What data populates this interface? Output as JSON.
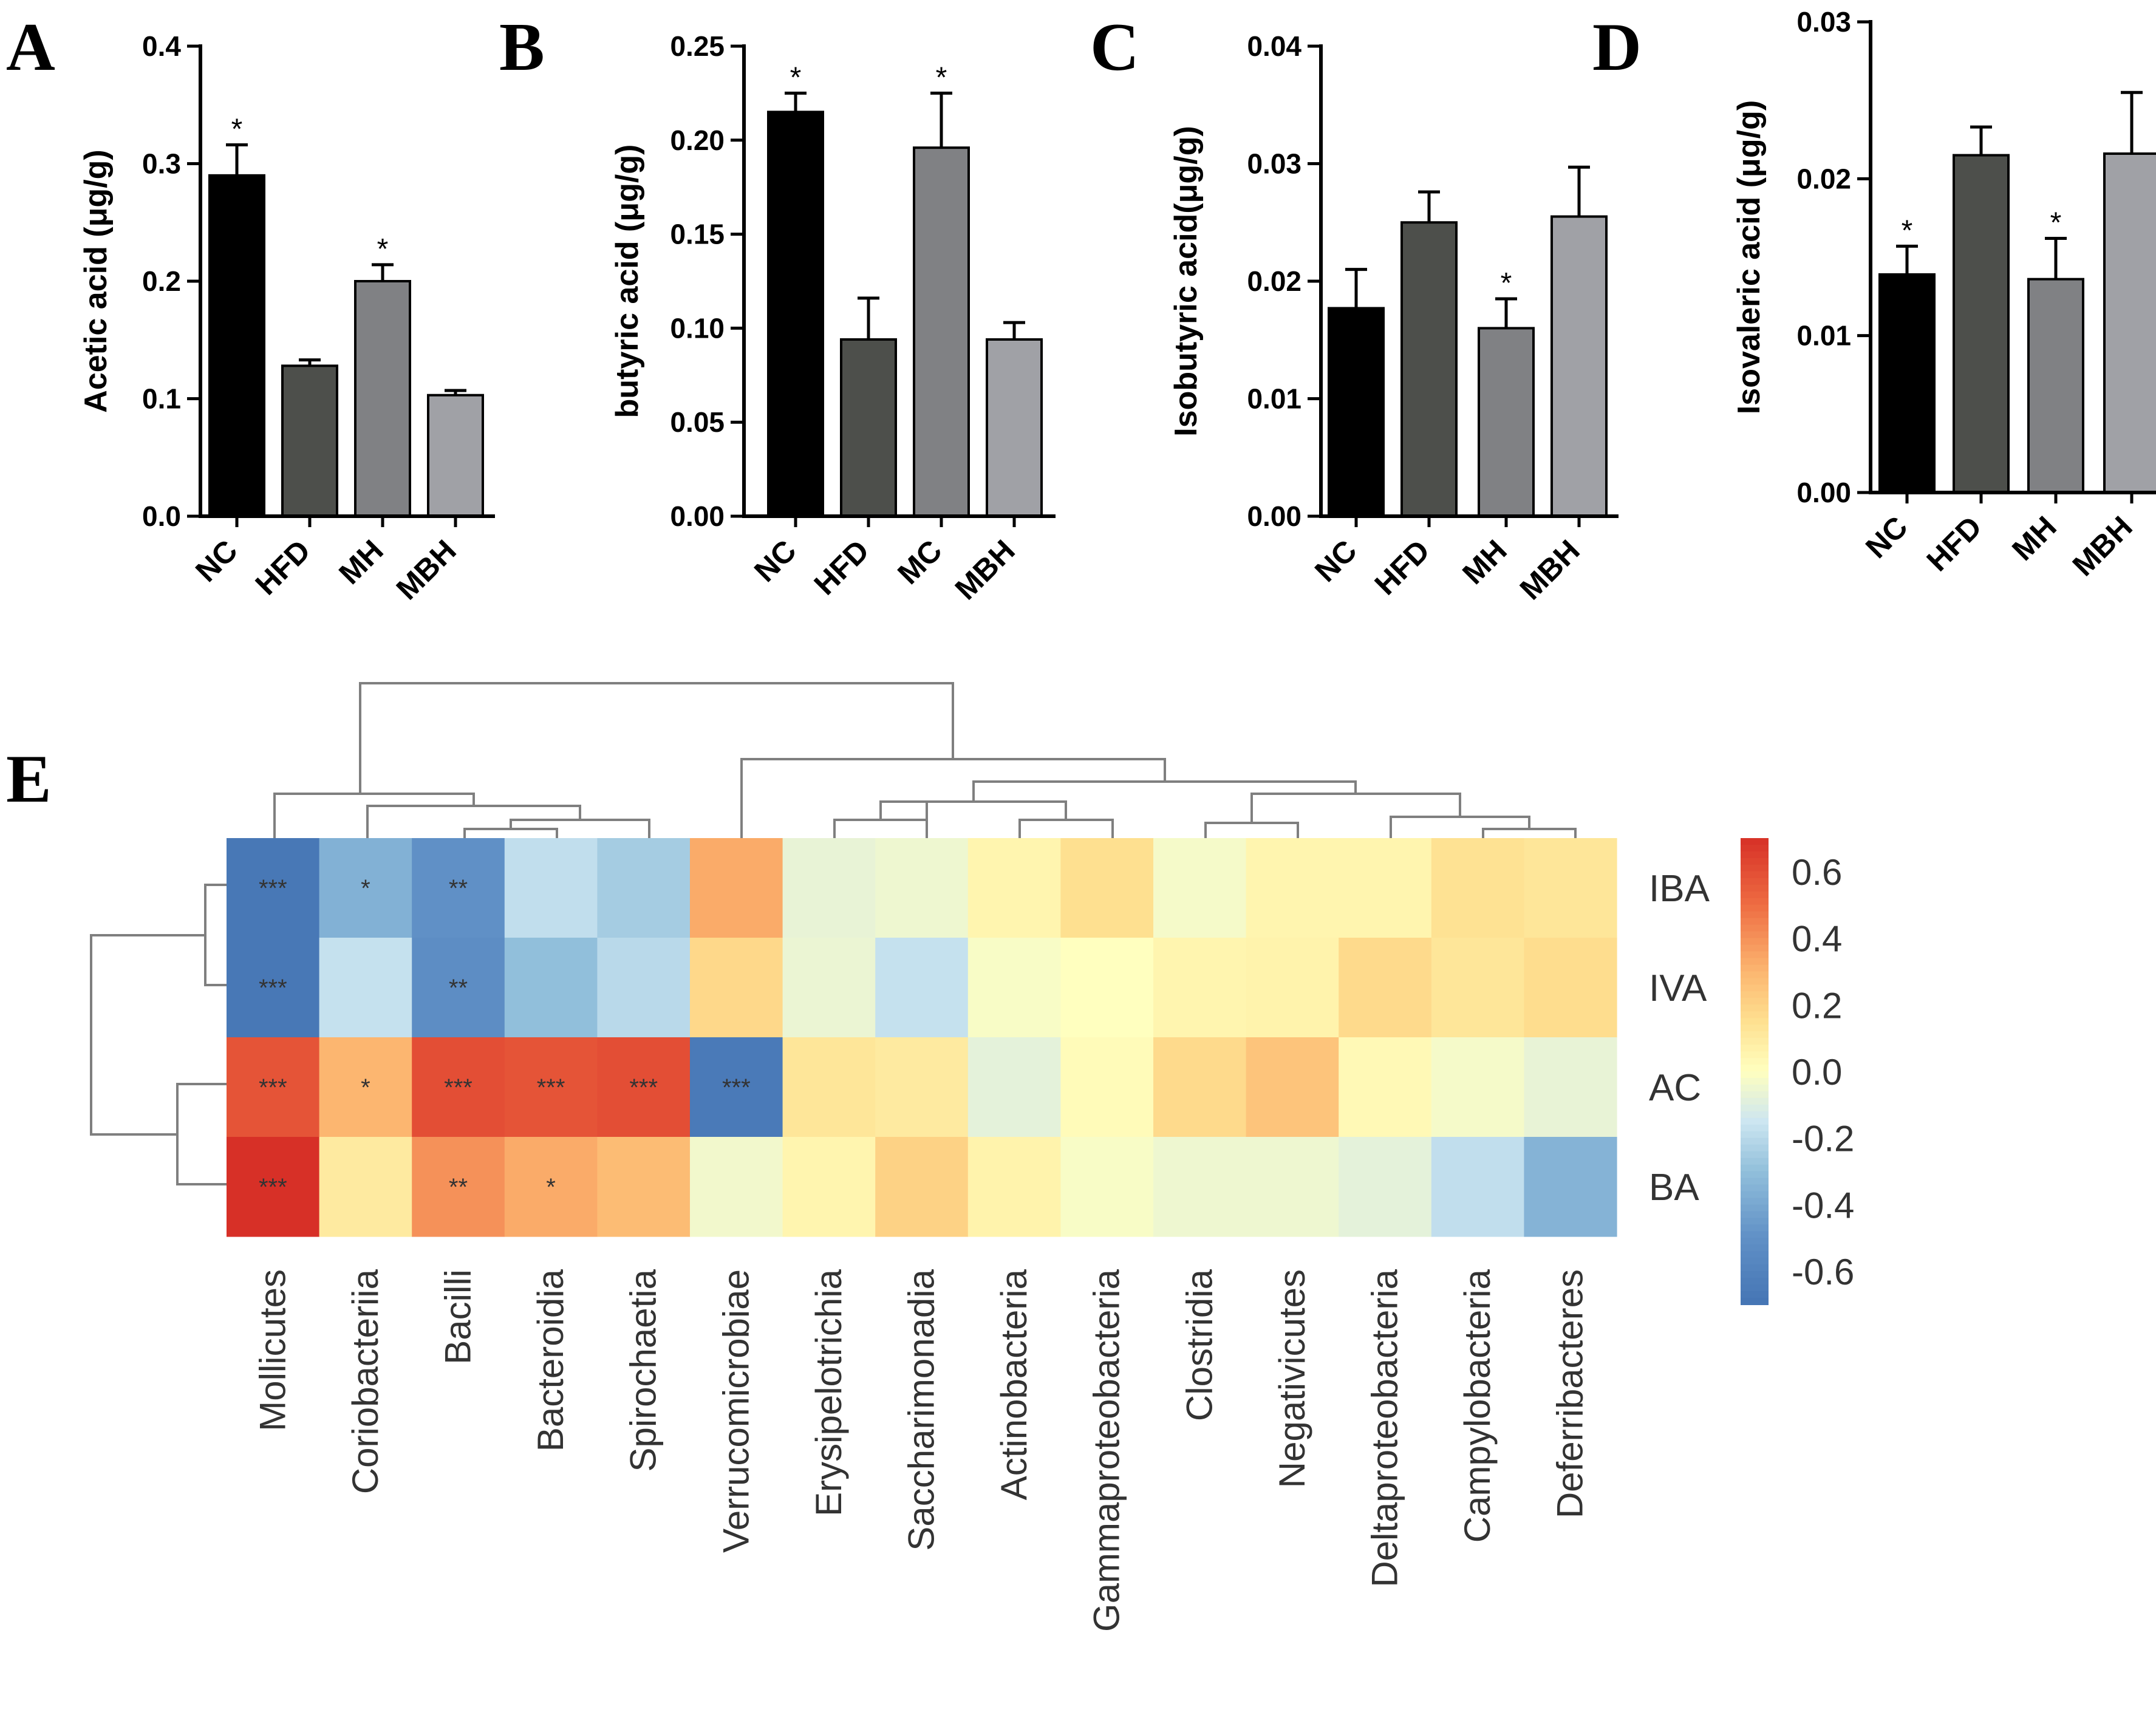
{
  "colors": {
    "NC": "#000000",
    "HFD": "#4d4f4b",
    "MH": "#808184",
    "MC": "#808184",
    "MBH": "#a0a1a6",
    "heat_low": "#4a76b6",
    "heat_mid": "#ffffbf",
    "heat_high": "#d52a2b",
    "dendrogram": "#7f7f7f"
  },
  "chart_data": [
    {
      "panel": "A",
      "type": "bar",
      "ylabel": "Acetic acid (μg/g)",
      "categories": [
        "NC",
        "HFD",
        "MH",
        "MBH"
      ],
      "values": [
        0.29,
        0.128,
        0.2,
        0.103
      ],
      "errors": [
        0.026,
        0.005,
        0.014,
        0.004
      ],
      "significance": [
        "*",
        "",
        "*",
        ""
      ],
      "ylim": [
        0,
        0.4
      ],
      "yticks": [
        0.0,
        0.1,
        0.2,
        0.3,
        0.4
      ],
      "ytick_labels": [
        "0.0",
        "0.1",
        "0.2",
        "0.3",
        "0.4"
      ]
    },
    {
      "panel": "B",
      "type": "bar",
      "ylabel": "butyric acid (μg/g)",
      "categories": [
        "NC",
        "HFD",
        "MC",
        "MBH"
      ],
      "values": [
        0.215,
        0.094,
        0.196,
        0.094
      ],
      "errors": [
        0.01,
        0.022,
        0.029,
        0.009
      ],
      "significance": [
        "*",
        "",
        "*",
        ""
      ],
      "ylim": [
        0,
        0.25
      ],
      "yticks": [
        0.0,
        0.05,
        0.1,
        0.15,
        0.2,
        0.25
      ],
      "ytick_labels": [
        "0.00",
        "0.05",
        "0.10",
        "0.15",
        "0.20",
        "0.25"
      ]
    },
    {
      "panel": "C",
      "type": "bar",
      "ylabel": "Isobutyric acid(μg/g)",
      "categories": [
        "NC",
        "HFD",
        "MH",
        "MBH"
      ],
      "values": [
        0.0177,
        0.025,
        0.016,
        0.0255
      ],
      "errors": [
        0.0033,
        0.0026,
        0.0025,
        0.0042
      ],
      "significance": [
        "",
        "",
        "*",
        ""
      ],
      "ylim": [
        0,
        0.04
      ],
      "yticks": [
        0.0,
        0.01,
        0.02,
        0.03,
        0.04
      ],
      "ytick_labels": [
        "0.00",
        "0.01",
        "0.02",
        "0.03",
        "0.04"
      ]
    },
    {
      "panel": "D",
      "type": "bar",
      "ylabel": "Isovaleric acid (μg/g)",
      "categories": [
        "NC",
        "HFD",
        "MH",
        "MBH"
      ],
      "values": [
        0.0139,
        0.0215,
        0.0136,
        0.0216
      ],
      "errors": [
        0.0018,
        0.0018,
        0.0026,
        0.0039
      ],
      "significance": [
        "*",
        "",
        "*",
        ""
      ],
      "ylim": [
        0,
        0.03
      ],
      "yticks": [
        0.0,
        0.01,
        0.02,
        0.03
      ],
      "ytick_labels": [
        "0.00",
        "0.01",
        "0.02",
        "0.03"
      ]
    },
    {
      "panel": "E",
      "type": "heatmap",
      "rows": [
        "IBA",
        "IVA",
        "AC",
        "BA"
      ],
      "columns": [
        "Mollicutes",
        "Coriobacteriia",
        "Bacilli",
        "Bacteroidia",
        "Spirochaetia",
        "Verrucomicrobiae",
        "Erysipelotrichia",
        "Saccharimonadia",
        "Actinobacteria",
        "Gammaproteobacteria",
        "Clostridia",
        "Negativicutes",
        "Deltaproteobacteria",
        "Campylobacteria",
        "Deferribacteres"
      ],
      "values": [
        [
          -0.68,
          -0.36,
          -0.5,
          -0.18,
          -0.25,
          0.33,
          -0.07,
          -0.05,
          0.05,
          0.15,
          -0.03,
          0.05,
          0.05,
          0.14,
          0.12
        ],
        [
          -0.68,
          -0.17,
          -0.52,
          -0.3,
          -0.2,
          0.18,
          -0.06,
          -0.17,
          -0.02,
          0.0,
          0.05,
          0.06,
          0.17,
          0.12,
          0.16
        ],
        [
          0.58,
          0.3,
          0.6,
          0.58,
          0.6,
          -0.66,
          0.12,
          0.1,
          -0.08,
          0.02,
          0.17,
          0.25,
          0.03,
          -0.03,
          -0.07
        ],
        [
          0.7,
          0.1,
          0.4,
          0.33,
          0.28,
          -0.04,
          0.05,
          0.2,
          0.06,
          -0.02,
          -0.05,
          -0.05,
          -0.08,
          -0.18,
          -0.35
        ]
      ],
      "stars": [
        [
          "***",
          "*",
          "**",
          "",
          "",
          "",
          "",
          "",
          "",
          "",
          "",
          "",
          "",
          "",
          ""
        ],
        [
          "***",
          "",
          "**",
          "",
          "",
          "",
          "",
          "",
          "",
          "",
          "",
          "",
          "",
          "",
          ""
        ],
        [
          "***",
          "*",
          "***",
          "***",
          "***",
          "***",
          "",
          "",
          "",
          "",
          "",
          "",
          "",
          "",
          ""
        ],
        [
          "***",
          "",
          "**",
          "*",
          "",
          "",
          "",
          "",
          "",
          "",
          "",
          "",
          "",
          "",
          ""
        ]
      ],
      "colorbar": {
        "range": [
          -0.7,
          0.7
        ],
        "ticks": [
          0.6,
          0.4,
          0.2,
          0.0,
          -0.2,
          -0.4,
          -0.6
        ],
        "tick_labels": [
          "0.6",
          "0.4",
          "0.2",
          "0.0",
          "-0.2",
          "-0.4",
          "-0.6"
        ]
      }
    }
  ]
}
